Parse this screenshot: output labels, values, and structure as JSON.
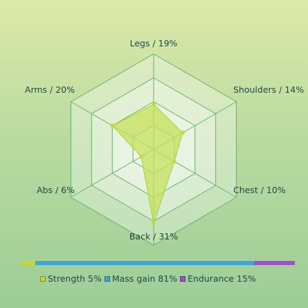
{
  "chart_data": {
    "type": "radar",
    "axes": [
      "Legs / 19%",
      "Shoulders / 14%",
      "Chest / 10%",
      "Back / 31%",
      "Abs / 6%",
      "Arms / 20%"
    ],
    "values": [
      19,
      14,
      10,
      31,
      6,
      20
    ],
    "rmax": 40,
    "grid_rings": 4,
    "series_color": "#c6e05a",
    "grid_color": "#5fb46a",
    "legend_position": "bottom",
    "composition": [
      {
        "label": "Strength 5%",
        "value": 5,
        "color": "#c6d632"
      },
      {
        "label": "Mass gain 81%",
        "value": 81,
        "color": "#3ca5dc"
      },
      {
        "label": "Endurance 15%",
        "value": 15,
        "color": "#a24ccf"
      }
    ]
  }
}
